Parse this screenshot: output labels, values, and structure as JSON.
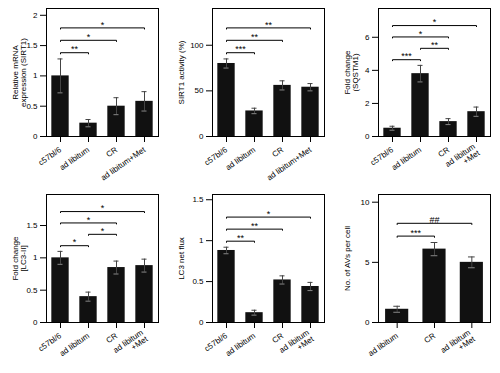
{
  "chart_data": [
    {
      "type": "bar",
      "categories": [
        "c57bl/6",
        "ad libitum",
        "CR",
        "ad libitum+Met"
      ],
      "values": [
        1.0,
        0.22,
        0.5,
        0.58
      ],
      "errors": [
        0.28,
        0.06,
        0.14,
        0.16
      ],
      "color": "#111111",
      "y_label": "Relative mRNA\nexpression (SIRT1)",
      "ylim": [
        0,
        2.112
      ],
      "yticks": [
        0,
        0.5,
        1,
        1.5,
        2
      ],
      "annotations": [
        {
          "from": "c57bl/6",
          "to": "ad libitum",
          "text": "**"
        },
        {
          "from": "c57bl/6",
          "to": "CR",
          "text": "*"
        },
        {
          "from": "c57bl/6",
          "to": "ad libitum+Met",
          "text": "*"
        }
      ]
    },
    {
      "type": "bar",
      "categories": [
        "c57bl/6",
        "ad libitum",
        "CR",
        "ad libitum+Met"
      ],
      "values": [
        80,
        28,
        56,
        54
      ],
      "errors": [
        5,
        3,
        5,
        4
      ],
      "color": "#111111",
      "y_label": "SIRT1 activity (%)",
      "ylim": [
        0,
        140.25
      ],
      "yticks": [
        0,
        50,
        100
      ],
      "annotations": [
        {
          "from": "c57bl/6",
          "to": "ad libitum",
          "text": "***"
        },
        {
          "from": "c57bl/6",
          "to": "CR",
          "text": "**"
        },
        {
          "from": "c57bl/6",
          "to": "ad libitum+Met",
          "text": "**"
        }
      ]
    },
    {
      "type": "bar",
      "categories": [
        "c57bl/6",
        "ad libitum",
        "CR",
        "ad libitum\n+Met"
      ],
      "values": [
        0.5,
        3.8,
        0.9,
        1.5
      ],
      "errors": [
        0.12,
        0.5,
        0.18,
        0.28
      ],
      "color": "#111111",
      "y_label": "Fold change\n(SQSTM1)",
      "ylim": [
        0,
        7.74
      ],
      "yticks": [
        0,
        2,
        4,
        6
      ],
      "annotations": [
        {
          "from": "c57bl/6",
          "to": "ad libitum",
          "text": "***"
        },
        {
          "from": "ad libitum",
          "to": "CR",
          "text": "**"
        },
        {
          "from": "c57bl/6",
          "to": "CR",
          "text": "*"
        },
        {
          "from": "c57bl/6",
          "to": "ad libitum\n+Met",
          "text": "*"
        }
      ]
    },
    {
      "type": "bar",
      "categories": [
        "c57bl/6",
        "ad libitum",
        "CR",
        "ad libitum\n+Met"
      ],
      "values": [
        1.0,
        0.4,
        0.85,
        0.88
      ],
      "errors": [
        0.1,
        0.07,
        0.1,
        0.1
      ],
      "color": "#111111",
      "y_label": "Fold change\n[LC3-II]",
      "ylim": [
        0,
        1.98
      ],
      "yticks": [
        0,
        0.5,
        1,
        1.5
      ],
      "annotations": [
        {
          "from": "c57bl/6",
          "to": "ad libitum",
          "text": "*"
        },
        {
          "from": "ad libitum",
          "to": "CR",
          "text": "*"
        },
        {
          "from": "c57bl/6",
          "to": "CR",
          "text": "*"
        },
        {
          "from": "c57bl/6",
          "to": "ad libitum\n+Met",
          "text": "*"
        }
      ]
    },
    {
      "type": "bar",
      "categories": [
        "c57bl/6",
        "ad libitum",
        "CR",
        "ad libitum\n+Met"
      ],
      "values": [
        0.88,
        0.12,
        0.52,
        0.44
      ],
      "errors": [
        0.04,
        0.03,
        0.05,
        0.05
      ],
      "color": "#111111",
      "y_label": "LC3 net flux",
      "ylim": [
        0,
        1.564
      ],
      "yticks": [
        0,
        0.5,
        1,
        1.5
      ],
      "annotations": [
        {
          "from": "c57bl/6",
          "to": "ad libitum",
          "text": "**"
        },
        {
          "from": "c57bl/6",
          "to": "CR",
          "text": "**"
        },
        {
          "from": "c57bl/6",
          "to": "ad libitum\n+Met",
          "text": "*"
        }
      ]
    },
    {
      "type": "bar",
      "categories": [
        "ad libitum",
        "CR",
        "ad libitum\n+Met"
      ],
      "values": [
        1.1,
        6.1,
        5.0
      ],
      "errors": [
        0.25,
        0.55,
        0.45
      ],
      "color": "#111111",
      "y_label": "No. of AVs per cell",
      "ylim": [
        0,
        10.64
      ],
      "yticks": [
        0,
        5,
        10
      ],
      "annotations": [
        {
          "from": "ad libitum",
          "to": "CR",
          "text": "***"
        },
        {
          "from": "ad libitum",
          "to": "ad libitum\n+Met",
          "text": "##"
        }
      ]
    }
  ]
}
